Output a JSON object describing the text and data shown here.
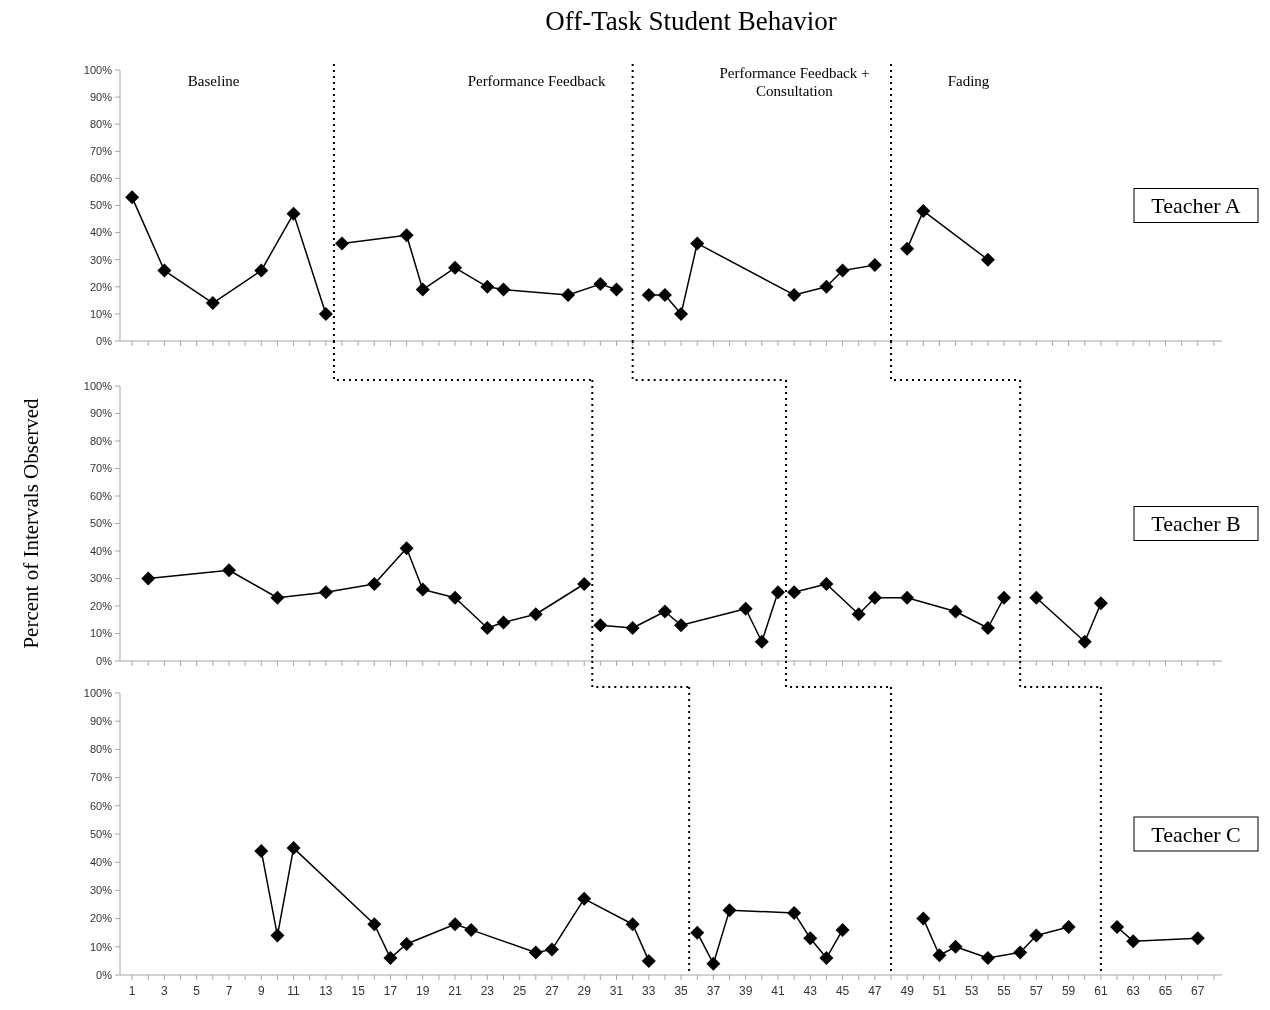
{
  "chart_data": [
    {
      "type": "line",
      "title": "Off-Task Student Behavior",
      "xlim": [
        0.25,
        68.5
      ],
      "ylim": [
        0,
        100
      ],
      "tick_labels": "y",
      "grid": false,
      "marker": "diamond",
      "line_style": "solid",
      "yticks": [
        {
          "value": 0,
          "label": "0%"
        },
        {
          "value": 10,
          "label": "10%"
        },
        {
          "value": 20,
          "label": "20%"
        },
        {
          "value": 30,
          "label": "30%"
        },
        {
          "value": 40,
          "label": "40%"
        },
        {
          "value": 50,
          "label": "50%"
        },
        {
          "value": 60,
          "label": "60%"
        },
        {
          "value": 70,
          "label": "70%"
        },
        {
          "value": 80,
          "label": "80%"
        },
        {
          "value": 90,
          "label": "90%"
        },
        {
          "value": 100,
          "label": "100%"
        }
      ],
      "xticks": [
        1,
        {
          "value": 2,
          "label": null
        },
        3,
        {
          "value": 4,
          "label": null
        },
        5,
        {
          "value": 6,
          "label": null
        },
        7,
        {
          "value": 8,
          "label": null
        },
        9,
        {
          "value": 10,
          "label": null
        },
        11,
        {
          "value": 12,
          "label": null
        },
        13,
        {
          "value": 14,
          "label": null
        },
        15,
        {
          "value": 16,
          "label": null
        },
        17,
        {
          "value": 18,
          "label": null
        },
        19,
        {
          "value": 20,
          "label": null
        },
        21,
        {
          "value": 22,
          "label": null
        },
        23,
        {
          "value": 24,
          "label": null
        },
        25,
        {
          "value": 26,
          "label": null
        },
        27,
        {
          "value": 28,
          "label": null
        },
        29,
        {
          "value": 30,
          "label": null
        },
        31,
        {
          "value": 32,
          "label": null
        },
        33,
        {
          "value": 34,
          "label": null
        },
        35,
        {
          "value": 36,
          "label": null
        },
        37,
        {
          "value": 38,
          "label": null
        },
        39,
        {
          "value": 40,
          "label": null
        },
        41,
        {
          "value": 42,
          "label": null
        },
        43,
        {
          "value": 44,
          "label": null
        },
        45,
        {
          "value": 46,
          "label": null
        },
        47,
        {
          "value": 48,
          "label": null
        },
        49,
        {
          "value": 50,
          "label": null
        },
        51,
        {
          "value": 52,
          "label": null
        },
        53,
        {
          "value": 54,
          "label": null
        },
        55,
        {
          "value": 56,
          "label": null
        },
        57,
        {
          "value": 58,
          "label": null
        },
        59,
        {
          "value": 60,
          "label": null
        },
        61,
        {
          "value": 62,
          "label": null
        },
        63,
        {
          "value": 64,
          "label": null
        },
        65,
        {
          "value": 66,
          "label": null
        },
        67,
        {
          "value": 68,
          "label": null
        }
      ],
      "series": [
        {
          "color": "#000000",
          "x": [
            1,
            3,
            6,
            9,
            11,
            13,
            13.5,
            14,
            18,
            19,
            21,
            23,
            24,
            28,
            30,
            31,
            32,
            33,
            34,
            35,
            36,
            42,
            44,
            45,
            47,
            48,
            49,
            50,
            54
          ],
          "values": [
            53,
            26,
            14,
            26,
            47,
            10,
            null,
            36,
            39,
            19,
            27,
            20,
            19,
            17,
            21,
            19,
            null,
            17,
            17,
            10,
            36,
            17,
            20,
            26,
            28,
            null,
            34,
            48,
            30
          ]
        }
      ],
      "ref_lines": [
        {
          "axis": "x",
          "value": 13.5,
          "color": "#000000",
          "line_style": "dotted"
        },
        {
          "axis": "x",
          "value": 32,
          "color": "#000000",
          "line_style": "dotted"
        },
        {
          "axis": "x",
          "value": 48,
          "color": "#000000",
          "line_style": "dotted"
        }
      ],
      "annotations": [
        "Baseline",
        "Performance Feedback",
        "Performance Feedback +\nConsultation",
        "Fading",
        "Teacher A"
      ]
    },
    {
      "type": "line",
      "ylabel": "Percent of Intervals Observed",
      "xlim": [
        0.25,
        68.5
      ],
      "ylim": [
        0,
        100
      ],
      "tick_labels": "y",
      "grid": false,
      "marker": "diamond",
      "line_style": "solid",
      "yticks": [
        {
          "value": 0,
          "label": "0%"
        },
        {
          "value": 10,
          "label": "10%"
        },
        {
          "value": 20,
          "label": "20%"
        },
        {
          "value": 30,
          "label": "30%"
        },
        {
          "value": 40,
          "label": "40%"
        },
        {
          "value": 50,
          "label": "50%"
        },
        {
          "value": 60,
          "label": "60%"
        },
        {
          "value": 70,
          "label": "70%"
        },
        {
          "value": 80,
          "label": "80%"
        },
        {
          "value": 90,
          "label": "90%"
        },
        {
          "value": 100,
          "label": "100%"
        }
      ],
      "xticks": [
        1,
        {
          "value": 2,
          "label": null
        },
        3,
        {
          "value": 4,
          "label": null
        },
        5,
        {
          "value": 6,
          "label": null
        },
        7,
        {
          "value": 8,
          "label": null
        },
        9,
        {
          "value": 10,
          "label": null
        },
        11,
        {
          "value": 12,
          "label": null
        },
        13,
        {
          "value": 14,
          "label": null
        },
        15,
        {
          "value": 16,
          "label": null
        },
        17,
        {
          "value": 18,
          "label": null
        },
        19,
        {
          "value": 20,
          "label": null
        },
        21,
        {
          "value": 22,
          "label": null
        },
        23,
        {
          "value": 24,
          "label": null
        },
        25,
        {
          "value": 26,
          "label": null
        },
        27,
        {
          "value": 28,
          "label": null
        },
        29,
        {
          "value": 30,
          "label": null
        },
        31,
        {
          "value": 32,
          "label": null
        },
        33,
        {
          "value": 34,
          "label": null
        },
        35,
        {
          "value": 36,
          "label": null
        },
        37,
        {
          "value": 38,
          "label": null
        },
        39,
        {
          "value": 40,
          "label": null
        },
        41,
        {
          "value": 42,
          "label": null
        },
        43,
        {
          "value": 44,
          "label": null
        },
        45,
        {
          "value": 46,
          "label": null
        },
        47,
        {
          "value": 48,
          "label": null
        },
        49,
        {
          "value": 50,
          "label": null
        },
        51,
        {
          "value": 52,
          "label": null
        },
        53,
        {
          "value": 54,
          "label": null
        },
        55,
        {
          "value": 56,
          "label": null
        },
        57,
        {
          "value": 58,
          "label": null
        },
        59,
        {
          "value": 60,
          "label": null
        },
        61,
        {
          "value": 62,
          "label": null
        },
        63,
        {
          "value": 64,
          "label": null
        },
        65,
        {
          "value": 66,
          "label": null
        },
        67,
        {
          "value": 68,
          "label": null
        }
      ],
      "series": [
        {
          "color": "#000000",
          "x": [
            2,
            7,
            10,
            13,
            16,
            18,
            19,
            21,
            23,
            24,
            26,
            29,
            29.5,
            30,
            32,
            34,
            35,
            39,
            40,
            41,
            41.5,
            42,
            44,
            46,
            47,
            49,
            52,
            54,
            55,
            56,
            57,
            60,
            61
          ],
          "values": [
            30,
            33,
            23,
            25,
            28,
            41,
            26,
            23,
            12,
            14,
            17,
            28,
            null,
            13,
            12,
            18,
            13,
            19,
            7,
            25,
            null,
            25,
            28,
            17,
            23,
            23,
            18,
            12,
            23,
            null,
            23,
            7,
            21
          ]
        }
      ],
      "ref_lines": [
        {
          "axis": "x",
          "value": 29.5,
          "color": "#000000",
          "line_style": "dotted"
        },
        {
          "axis": "x",
          "value": 41.5,
          "color": "#000000",
          "line_style": "dotted"
        },
        {
          "axis": "x",
          "value": 56,
          "color": "#000000",
          "line_style": "dotted"
        }
      ],
      "annotations": [
        "Teacher B"
      ]
    },
    {
      "type": "line",
      "xlim": [
        0.25,
        68.5
      ],
      "ylim": [
        0,
        100
      ],
      "grid": false,
      "marker": "diamond",
      "line_style": "solid",
      "yticks": [
        {
          "value": 0,
          "label": "0%"
        },
        {
          "value": 10,
          "label": "10%"
        },
        {
          "value": 20,
          "label": "20%"
        },
        {
          "value": 30,
          "label": "30%"
        },
        {
          "value": 40,
          "label": "40%"
        },
        {
          "value": 50,
          "label": "50%"
        },
        {
          "value": 60,
          "label": "60%"
        },
        {
          "value": 70,
          "label": "70%"
        },
        {
          "value": 80,
          "label": "80%"
        },
        {
          "value": 90,
          "label": "90%"
        },
        {
          "value": 100,
          "label": "100%"
        }
      ],
      "xticks": [
        1,
        {
          "value": 2,
          "label": null
        },
        3,
        {
          "value": 4,
          "label": null
        },
        5,
        {
          "value": 6,
          "label": null
        },
        7,
        {
          "value": 8,
          "label": null
        },
        9,
        {
          "value": 10,
          "label": null
        },
        11,
        {
          "value": 12,
          "label": null
        },
        13,
        {
          "value": 14,
          "label": null
        },
        15,
        {
          "value": 16,
          "label": null
        },
        17,
        {
          "value": 18,
          "label": null
        },
        19,
        {
          "value": 20,
          "label": null
        },
        21,
        {
          "value": 22,
          "label": null
        },
        23,
        {
          "value": 24,
          "label": null
        },
        25,
        {
          "value": 26,
          "label": null
        },
        27,
        {
          "value": 28,
          "label": null
        },
        29,
        {
          "value": 30,
          "label": null
        },
        31,
        {
          "value": 32,
          "label": null
        },
        33,
        {
          "value": 34,
          "label": null
        },
        35,
        {
          "value": 36,
          "label": null
        },
        37,
        {
          "value": 38,
          "label": null
        },
        39,
        {
          "value": 40,
          "label": null
        },
        41,
        {
          "value": 42,
          "label": null
        },
        43,
        {
          "value": 44,
          "label": null
        },
        45,
        {
          "value": 46,
          "label": null
        },
        47,
        {
          "value": 48,
          "label": null
        },
        49,
        {
          "value": 50,
          "label": null
        },
        51,
        {
          "value": 52,
          "label": null
        },
        53,
        {
          "value": 54,
          "label": null
        },
        55,
        {
          "value": 56,
          "label": null
        },
        57,
        {
          "value": 58,
          "label": null
        },
        59,
        {
          "value": 60,
          "label": null
        },
        61,
        {
          "value": 62,
          "label": null
        },
        63,
        {
          "value": 64,
          "label": null
        },
        65,
        {
          "value": 66,
          "label": null
        },
        67,
        {
          "value": 68,
          "label": null
        }
      ],
      "series": [
        {
          "color": "#000000",
          "x": [
            9,
            10,
            11,
            16,
            17,
            18,
            21,
            22,
            26,
            27,
            29,
            32,
            33,
            35.5,
            36,
            37,
            38,
            42,
            43,
            44,
            45,
            48,
            50,
            51,
            52,
            54,
            56,
            57,
            59,
            61,
            62,
            63,
            67
          ],
          "values": [
            44,
            14,
            45,
            18,
            6,
            11,
            18,
            16,
            8,
            9,
            27,
            18,
            5,
            null,
            15,
            4,
            23,
            22,
            13,
            6,
            16,
            null,
            20,
            7,
            10,
            6,
            8,
            14,
            17,
            null,
            17,
            12,
            13
          ]
        }
      ],
      "ref_lines": [
        {
          "axis": "x",
          "value": 35.5,
          "color": "#000000",
          "line_style": "dotted"
        },
        {
          "axis": "x",
          "value": 48,
          "color": "#000000",
          "line_style": "dotted"
        },
        {
          "axis": "x",
          "value": 61,
          "color": "#000000",
          "line_style": "dotted"
        }
      ],
      "annotations": [
        "Teacher C"
      ]
    }
  ]
}
